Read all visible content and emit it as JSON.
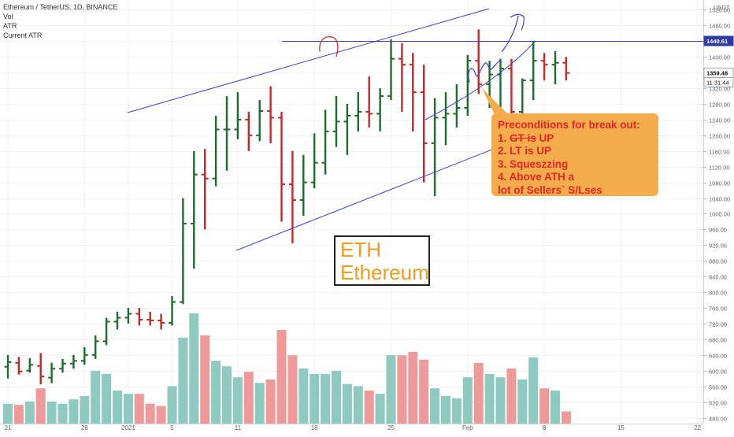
{
  "legend": {
    "symbol": "Ethereum / TetherUS, 1D, BINANCE",
    "vol": "Vol",
    "atr": "ATR",
    "current_atr": "Current ATR"
  },
  "annotation_box": {
    "line1": "ETH",
    "line2": "Ethereum"
  },
  "callout": {
    "title": "Preconditions for break out:",
    "items": [
      {
        "num": "1. ",
        "strike": "GT is",
        "rest": " UP"
      },
      {
        "num": "2. ",
        "strike": "",
        "rest": "LT is UP"
      },
      {
        "num": "3. ",
        "strike": "",
        "rest": "Squeszzing"
      },
      {
        "num": "4. ",
        "strike": "",
        "rest": "Above ATH a"
      },
      {
        "num": "",
        "strike": "",
        "rest": "lot of Sellers` S/Lses"
      }
    ]
  },
  "colors": {
    "up": "#1e6b2b",
    "down": "#c62828",
    "vol_up": "#8fcac1",
    "vol_down": "#ef9a9a",
    "trendline": "#3a3fd6",
    "callout_bg": "#f4ad4a",
    "callout_text": "#e8242a",
    "eth_text": "#f39b1a",
    "price_tag": "#2d3ba8"
  },
  "chart_data": {
    "type": "ohlc",
    "currency_label": "USDT",
    "y_ticks": [
      480,
      520,
      560,
      600,
      640,
      680,
      720,
      760,
      800,
      840,
      880,
      920,
      960,
      1000,
      1040,
      1080,
      1120,
      1160,
      1200,
      1240,
      1280,
      1320,
      1360,
      1400,
      1440,
      1480,
      1520
    ],
    "ylim": [
      465,
      1545
    ],
    "x_ticks": [
      {
        "label": "21",
        "day": 0
      },
      {
        "label": "28",
        "day": 7
      },
      {
        "label": "2021",
        "day": 11
      },
      {
        "label": "5",
        "day": 15
      },
      {
        "label": "11",
        "day": 21
      },
      {
        "label": "18",
        "day": 28
      },
      {
        "label": "25",
        "day": 35
      },
      {
        "label": "Feb",
        "day": 42
      },
      {
        "label": "8",
        "day": 49
      },
      {
        "label": "15",
        "day": 56
      },
      {
        "label": "22",
        "day": 63
      }
    ],
    "price_labels": {
      "resistance": "1440.61",
      "last": "1359.48",
      "countdown": "11:31:44"
    },
    "resistance": 1440.61,
    "last_price": 1359.48,
    "candles": [
      {
        "o": 610,
        "h": 640,
        "l": 580,
        "c": 622,
        "v": 0.18
      },
      {
        "o": 620,
        "h": 635,
        "l": 590,
        "c": 598,
        "v": 0.17
      },
      {
        "o": 600,
        "h": 632,
        "l": 595,
        "c": 615,
        "v": 0.2
      },
      {
        "o": 612,
        "h": 645,
        "l": 565,
        "c": 585,
        "v": 0.32
      },
      {
        "o": 582,
        "h": 620,
        "l": 568,
        "c": 605,
        "v": 0.2
      },
      {
        "o": 605,
        "h": 630,
        "l": 595,
        "c": 618,
        "v": 0.18
      },
      {
        "o": 618,
        "h": 640,
        "l": 605,
        "c": 625,
        "v": 0.22
      },
      {
        "o": 625,
        "h": 660,
        "l": 615,
        "c": 640,
        "v": 0.25
      },
      {
        "o": 640,
        "h": 690,
        "l": 630,
        "c": 675,
        "v": 0.48
      },
      {
        "o": 675,
        "h": 735,
        "l": 665,
        "c": 725,
        "v": 0.45
      },
      {
        "o": 725,
        "h": 750,
        "l": 705,
        "c": 735,
        "v": 0.3
      },
      {
        "o": 735,
        "h": 760,
        "l": 720,
        "c": 745,
        "v": 0.27
      },
      {
        "o": 745,
        "h": 760,
        "l": 715,
        "c": 730,
        "v": 0.27
      },
      {
        "o": 730,
        "h": 750,
        "l": 715,
        "c": 728,
        "v": 0.18
      },
      {
        "o": 728,
        "h": 745,
        "l": 705,
        "c": 722,
        "v": 0.16
      },
      {
        "o": 722,
        "h": 790,
        "l": 715,
        "c": 775,
        "v": 0.34
      },
      {
        "o": 775,
        "h": 1040,
        "l": 770,
        "c": 975,
        "v": 0.78
      },
      {
        "o": 975,
        "h": 1160,
        "l": 860,
        "c": 1100,
        "v": 1.0
      },
      {
        "o": 1100,
        "h": 1165,
        "l": 960,
        "c": 1090,
        "v": 0.8
      },
      {
        "o": 1090,
        "h": 1250,
        "l": 1070,
        "c": 1215,
        "v": 0.57
      },
      {
        "o": 1215,
        "h": 1300,
        "l": 1110,
        "c": 1215,
        "v": 0.52
      },
      {
        "o": 1215,
        "h": 1310,
        "l": 1190,
        "c": 1240,
        "v": 0.42
      },
      {
        "o": 1240,
        "h": 1260,
        "l": 1160,
        "c": 1200,
        "v": 0.47
      },
      {
        "o": 1200,
        "h": 1290,
        "l": 1185,
        "c": 1262,
        "v": 0.37
      },
      {
        "o": 1262,
        "h": 1325,
        "l": 1180,
        "c": 1245,
        "v": 0.4
      },
      {
        "o": 1245,
        "h": 1260,
        "l": 980,
        "c": 1075,
        "v": 0.85
      },
      {
        "o": 1075,
        "h": 1160,
        "l": 925,
        "c": 1035,
        "v": 0.62
      },
      {
        "o": 1035,
        "h": 1150,
        "l": 995,
        "c": 1080,
        "v": 0.5
      },
      {
        "o": 1080,
        "h": 1205,
        "l": 1065,
        "c": 1130,
        "v": 0.45
      },
      {
        "o": 1130,
        "h": 1265,
        "l": 1100,
        "c": 1210,
        "v": 0.45
      },
      {
        "o": 1210,
        "h": 1300,
        "l": 1170,
        "c": 1235,
        "v": 0.48
      },
      {
        "o": 1235,
        "h": 1280,
        "l": 1150,
        "c": 1250,
        "v": 0.36
      },
      {
        "o": 1250,
        "h": 1310,
        "l": 1210,
        "c": 1260,
        "v": 0.34
      },
      {
        "o": 1260,
        "h": 1350,
        "l": 1220,
        "c": 1255,
        "v": 0.3
      },
      {
        "o": 1255,
        "h": 1320,
        "l": 1210,
        "c": 1300,
        "v": 0.27
      },
      {
        "o": 1300,
        "h": 1445,
        "l": 1290,
        "c": 1395,
        "v": 0.62
      },
      {
        "o": 1395,
        "h": 1435,
        "l": 1260,
        "c": 1380,
        "v": 0.62
      },
      {
        "o": 1380,
        "h": 1410,
        "l": 1210,
        "c": 1310,
        "v": 0.65
      },
      {
        "o": 1310,
        "h": 1380,
        "l": 1080,
        "c": 1180,
        "v": 0.58
      },
      {
        "o": 1180,
        "h": 1295,
        "l": 1045,
        "c": 1245,
        "v": 0.32
      },
      {
        "o": 1245,
        "h": 1310,
        "l": 1175,
        "c": 1255,
        "v": 0.25
      },
      {
        "o": 1255,
        "h": 1330,
        "l": 1220,
        "c": 1270,
        "v": 0.23
      },
      {
        "o": 1270,
        "h": 1405,
        "l": 1250,
        "c": 1390,
        "v": 0.42
      },
      {
        "o": 1390,
        "h": 1470,
        "l": 1305,
        "c": 1330,
        "v": 0.55
      },
      {
        "o": 1330,
        "h": 1390,
        "l": 1270,
        "c": 1355,
        "v": 0.45
      },
      {
        "o": 1355,
        "h": 1395,
        "l": 1240,
        "c": 1370,
        "v": 0.42
      },
      {
        "o": 1370,
        "h": 1395,
        "l": 1205,
        "c": 1260,
        "v": 0.5
      },
      {
        "o": 1260,
        "h": 1345,
        "l": 1215,
        "c": 1340,
        "v": 0.4
      },
      {
        "o": 1340,
        "h": 1440,
        "l": 1290,
        "c": 1390,
        "v": 0.6
      },
      {
        "o": 1390,
        "h": 1410,
        "l": 1340,
        "c": 1380,
        "v": 0.32
      },
      {
        "o": 1380,
        "h": 1415,
        "l": 1330,
        "c": 1385,
        "v": 0.3
      },
      {
        "o": 1385,
        "h": 1400,
        "l": 1340,
        "c": 1359,
        "v": 0.11
      }
    ]
  }
}
